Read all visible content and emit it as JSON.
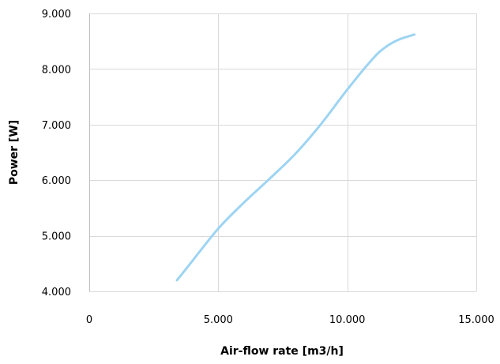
{
  "chart_data": {
    "type": "line",
    "title": "",
    "xlabel": "Air-flow rate [m3/h]",
    "ylabel": "Power [W]",
    "xlim": [
      0,
      15000
    ],
    "ylim": [
      4000,
      9000
    ],
    "x_ticks": [
      0,
      5000,
      10000,
      15000
    ],
    "x_tick_labels": [
      "0",
      "5.000",
      "10.000",
      "15.000"
    ],
    "y_ticks": [
      4000,
      5000,
      6000,
      7000,
      8000,
      9000
    ],
    "y_tick_labels": [
      "4.000",
      "5.000",
      "6.000",
      "7.000",
      "8.000",
      "9.000"
    ],
    "grid": true,
    "legend": "none",
    "series": [
      {
        "color": "#9dd4f2",
        "x": [
          3400,
          4000,
          5000,
          6000,
          7000,
          8000,
          9000,
          10000,
          11000,
          11500,
          12000,
          12600
        ],
        "y": [
          4200,
          4550,
          5130,
          5600,
          6030,
          6480,
          7020,
          7630,
          8190,
          8400,
          8530,
          8620
        ]
      }
    ]
  }
}
